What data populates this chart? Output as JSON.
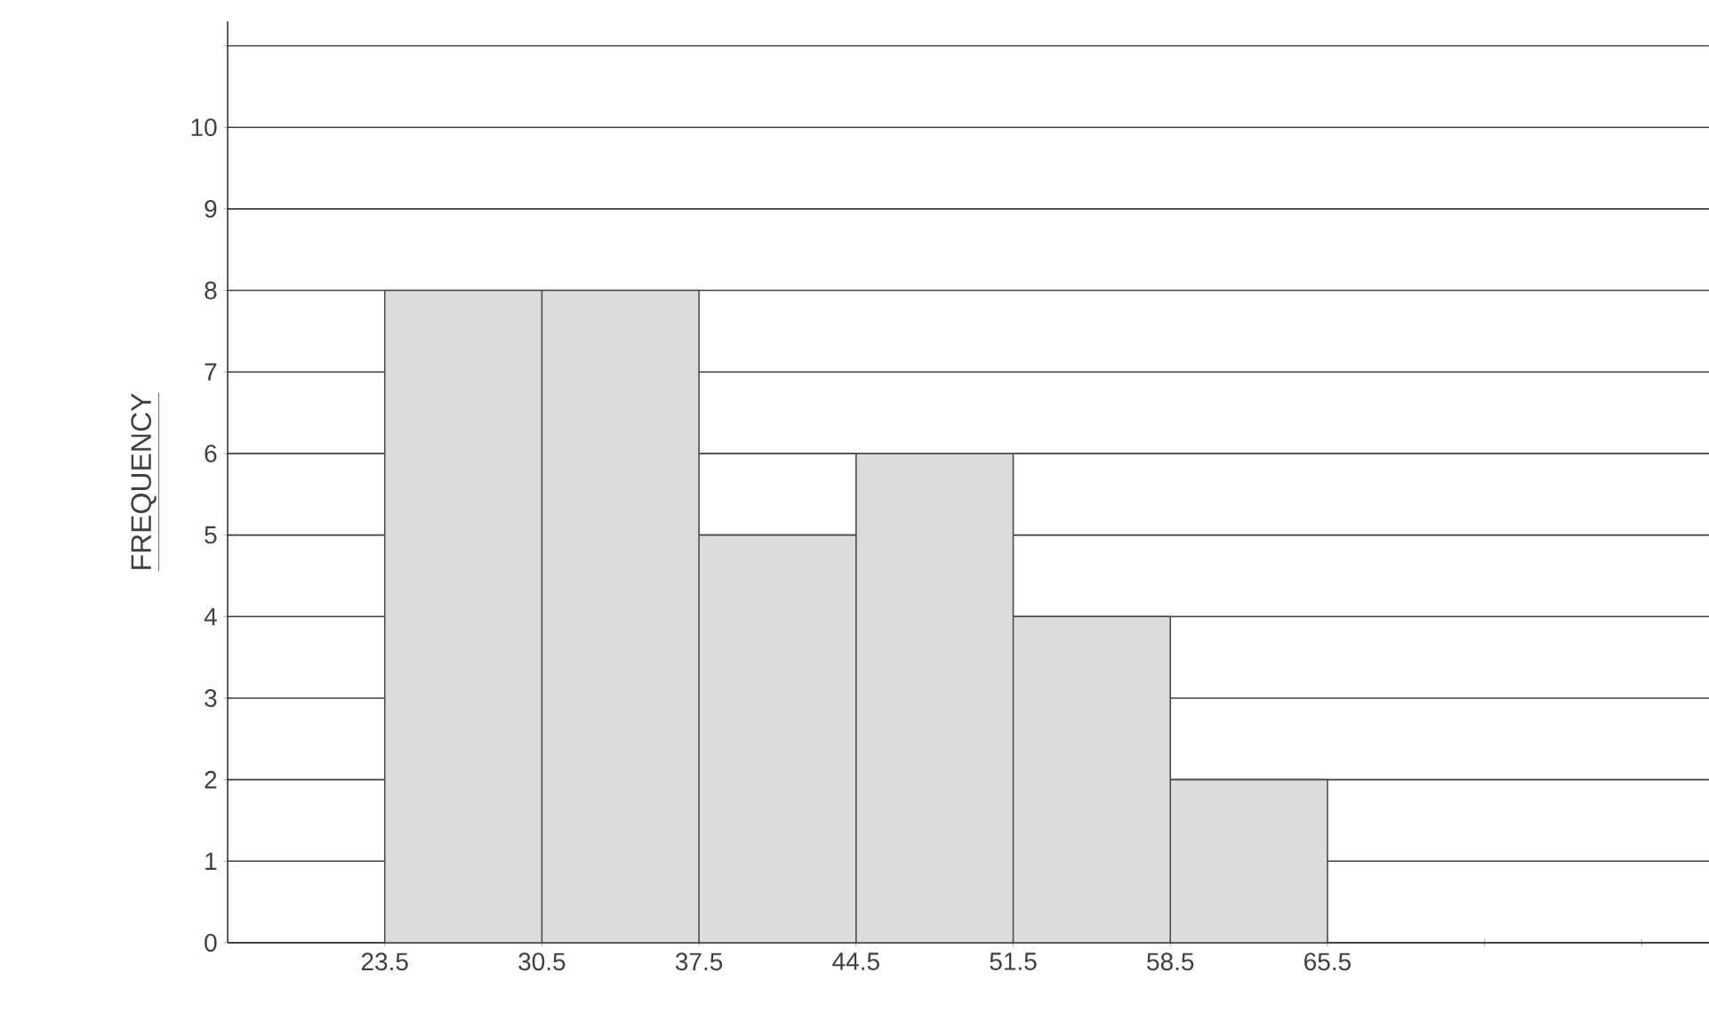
{
  "chart_data": {
    "type": "histogram",
    "ylabel": "FREQUENCY",
    "bins": [
      23.5,
      30.5,
      37.5,
      44.5,
      51.5,
      58.5,
      65.5
    ],
    "values": [
      8,
      8,
      5,
      6,
      4,
      2
    ],
    "color": "#dcdcdc",
    "xlim": [
      16.5,
      82.5
    ],
    "xticks": [
      23.5,
      30.5,
      37.5,
      44.5,
      51.5,
      58.5,
      65.5,
      {
        "value": 72.5,
        "label": null
      },
      {
        "value": 79.5,
        "label": null
      }
    ],
    "ylim": [
      0,
      11.3
    ],
    "yticks": [
      0,
      1,
      2,
      3,
      4,
      5,
      6,
      7,
      8,
      9,
      10,
      {
        "value": 11,
        "label": null
      }
    ],
    "grid": "y"
  }
}
